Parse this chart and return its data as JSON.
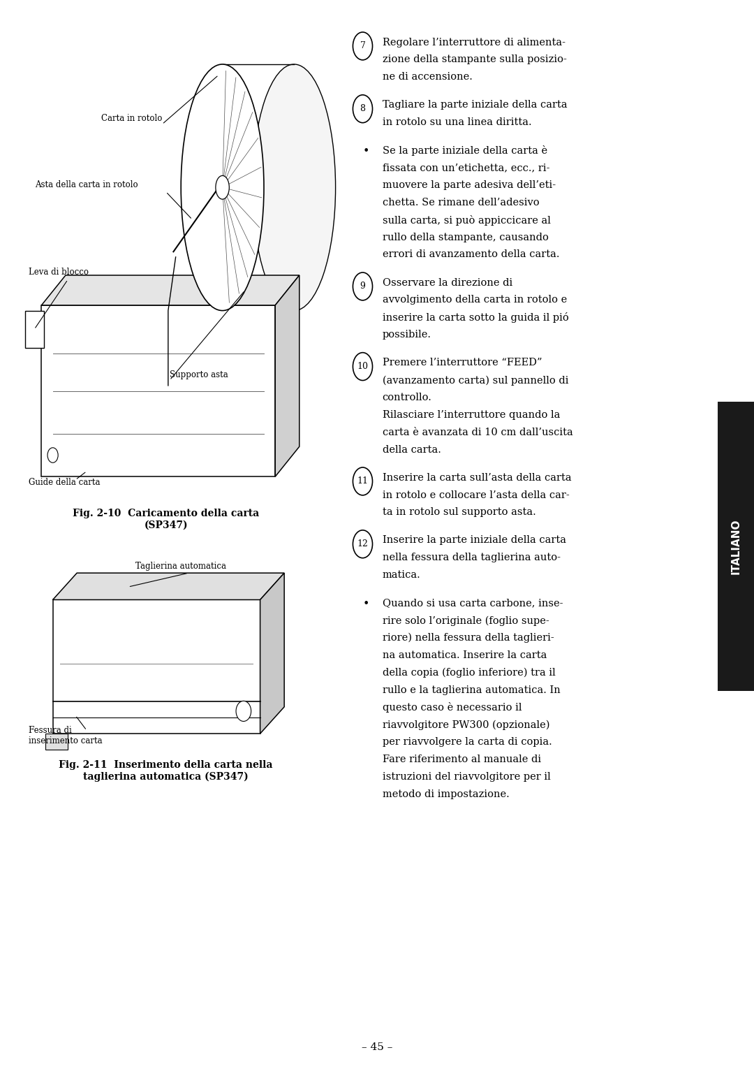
{
  "bg_color": "#ffffff",
  "page_width": 10.8,
  "page_height": 15.33,
  "sidebar_color": "#1a1a1a",
  "sidebar_text": "ITALIANO",
  "sidebar_text_color": "#ffffff",
  "fig1_caption": "Fig. 2-10  Caricamento della carta\n(SP347)",
  "fig2_caption": "Fig. 2-11  Inserimento della carta nella\ntaglierina automatica (SP347)",
  "page_number": "– 45 –",
  "right_col_items": [
    {
      "num": "7",
      "circled": true,
      "text": "Regolare l’interruttore di alimenta-\nzione della stampante sulla posizio-\nne di accensione."
    },
    {
      "num": "8",
      "circled": true,
      "text": "Tagliare la parte iniziale della carta\nin rotolo su una linea diritta."
    },
    {
      "num": "•",
      "circled": false,
      "text": "Se la parte iniziale della carta è\nfissata con un’etichetta, ecc., ri-\nmuovere la parte adesiva dell’eti-\nchetta. Se rimane dell’adesivo\nsulla carta, si può appiccicare al\nrullo della stampante, causando\nerrori di avanzamento della carta."
    },
    {
      "num": "9",
      "circled": true,
      "text": "Osservare la direzione di\navvolgimento della carta in rotolo e\ninserire la carta sotto la guida il pió\npossibile."
    },
    {
      "num": "10",
      "circled": true,
      "text": "Premere l’interruttore “FEED”\n(avanzamento carta) sul pannello di\ncontrollo.\nRilasciare l’interruttore quando la\ncarta è avanzata di 10 cm dall’uscita\ndella carta."
    },
    {
      "num": "11",
      "circled": true,
      "text": "Inserire la carta sull’asta della carta\nin rotolo e collocare l’asta della car-\nta in rotolo sul supporto asta."
    },
    {
      "num": "12",
      "circled": true,
      "text": "Inserire la parte iniziale della carta\nnella fessura della taglierina auto-\nmatica."
    },
    {
      "num": "•",
      "circled": false,
      "text": "Quando si usa carta carbone, inse-\nrire solo l’originale (foglio supe-\nriore) nella fessura della taglieri-\nna automatica. Inserire la carta\ndella copia (foglio inferiore) tra il\nrullo e la taglierina automatica. In\nquesto caso è necessario il\nriavvolgitore PW300 (opzionale)\nper riavvolgere la carta di copia.\nFare riferimento al manuale di\nistruzioni del riavvolgitore per il\nmetodo di impostazione."
    }
  ]
}
